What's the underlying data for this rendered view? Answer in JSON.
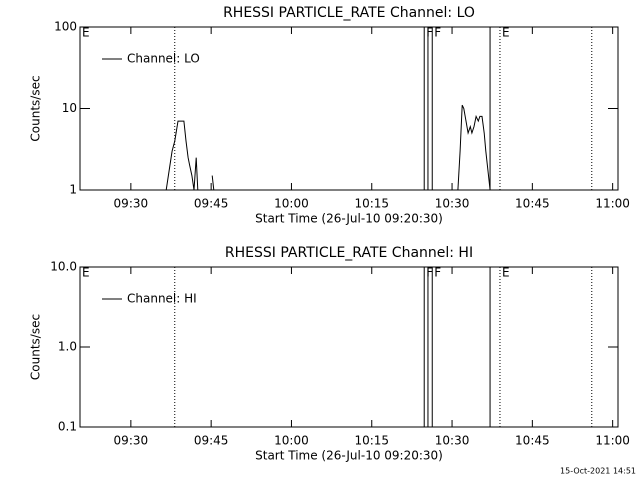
{
  "chart_data": [
    {
      "type": "line",
      "title": "RHESSI PARTICLE_RATE Channel: LO",
      "xlabel": "Start Time (26-Jul-10 09:20:30)",
      "ylabel": "Counts/sec",
      "x": [
        576.6,
        577.3,
        577.7,
        578.2,
        578.8,
        579.9,
        580.3,
        580.7,
        581.0,
        581.4,
        581.8,
        582.2,
        582.5,
        584.0,
        585.2,
        585.5,
        600.0,
        631.1,
        631.5,
        631.9,
        632.2,
        632.6,
        633.0,
        633.4,
        633.7,
        634.1,
        634.5,
        634.9,
        635.2,
        635.6,
        636.0,
        636.3,
        637.1
      ],
      "series": [
        {
          "name": "Channel: LO",
          "color": "#000000",
          "values": [
            1,
            2,
            3,
            4,
            7,
            7,
            4,
            2.5,
            2,
            1.5,
            1,
            2.5,
            1,
            null,
            1.5,
            1,
            null,
            1,
            3,
            11,
            10,
            7,
            5,
            6,
            5,
            6,
            8,
            7,
            8,
            8,
            5,
            3,
            1
          ]
        }
      ],
      "xlim": [
        560.5,
        661
      ],
      "ylim": [
        1,
        100
      ],
      "log_y": true,
      "xticks": [
        {
          "value": 570,
          "label": "09:30"
        },
        {
          "value": 585,
          "label": "09:45"
        },
        {
          "value": 600,
          "label": "10:00"
        },
        {
          "value": 615,
          "label": "10:15"
        },
        {
          "value": 630,
          "label": "10:30"
        },
        {
          "value": 645,
          "label": "10:45"
        },
        {
          "value": 660,
          "label": "11:00"
        }
      ],
      "yticks": [
        1,
        10,
        100
      ],
      "events": [
        {
          "x": 560.5,
          "label": "E",
          "style": "dotted"
        },
        {
          "x": 578.2,
          "label": null,
          "style": "dotted"
        },
        {
          "x": 624.8,
          "label": "F",
          "style": "solid"
        },
        {
          "x": 625.5,
          "label": null,
          "style": "solid"
        },
        {
          "x": 626.3,
          "label": "F",
          "style": "solid"
        },
        {
          "x": 637.1,
          "label": null,
          "style": "solid"
        },
        {
          "x": 638.95,
          "label": "E",
          "style": "dotted"
        },
        {
          "x": 656.1,
          "label": null,
          "style": "dotted"
        }
      ]
    },
    {
      "type": "line",
      "title": "RHESSI PARTICLE_RATE Channel: HI",
      "xlabel": "Start Time (26-Jul-10 09:20:30)",
      "ylabel": "Counts/sec",
      "x": [],
      "series": [
        {
          "name": "Channel: HI",
          "color": "#000000",
          "values": []
        }
      ],
      "xlim": [
        560.5,
        661
      ],
      "ylim": [
        0.1,
        10
      ],
      "log_y": true,
      "xticks": [
        {
          "value": 570,
          "label": "09:30"
        },
        {
          "value": 585,
          "label": "09:45"
        },
        {
          "value": 600,
          "label": "10:00"
        },
        {
          "value": 615,
          "label": "10:15"
        },
        {
          "value": 630,
          "label": "10:30"
        },
        {
          "value": 645,
          "label": "10:45"
        },
        {
          "value": 660,
          "label": "11:00"
        }
      ],
      "yticks": [
        {
          "value": 0.1,
          "label": "0.1"
        },
        {
          "value": 1,
          "label": "1.0"
        },
        {
          "value": 10,
          "label": "10.0"
        }
      ],
      "events": [
        {
          "x": 560.5,
          "label": "E",
          "style": "dotted"
        },
        {
          "x": 578.2,
          "label": null,
          "style": "dotted"
        },
        {
          "x": 624.8,
          "label": "F",
          "style": "solid"
        },
        {
          "x": 625.5,
          "label": null,
          "style": "solid"
        },
        {
          "x": 626.3,
          "label": "F",
          "style": "solid"
        },
        {
          "x": 637.1,
          "label": null,
          "style": "solid"
        },
        {
          "x": 638.95,
          "label": "E",
          "style": "dotted"
        },
        {
          "x": 656.1,
          "label": null,
          "style": "dotted"
        }
      ]
    }
  ],
  "timestamp": "15-Oct-2021 14:51"
}
